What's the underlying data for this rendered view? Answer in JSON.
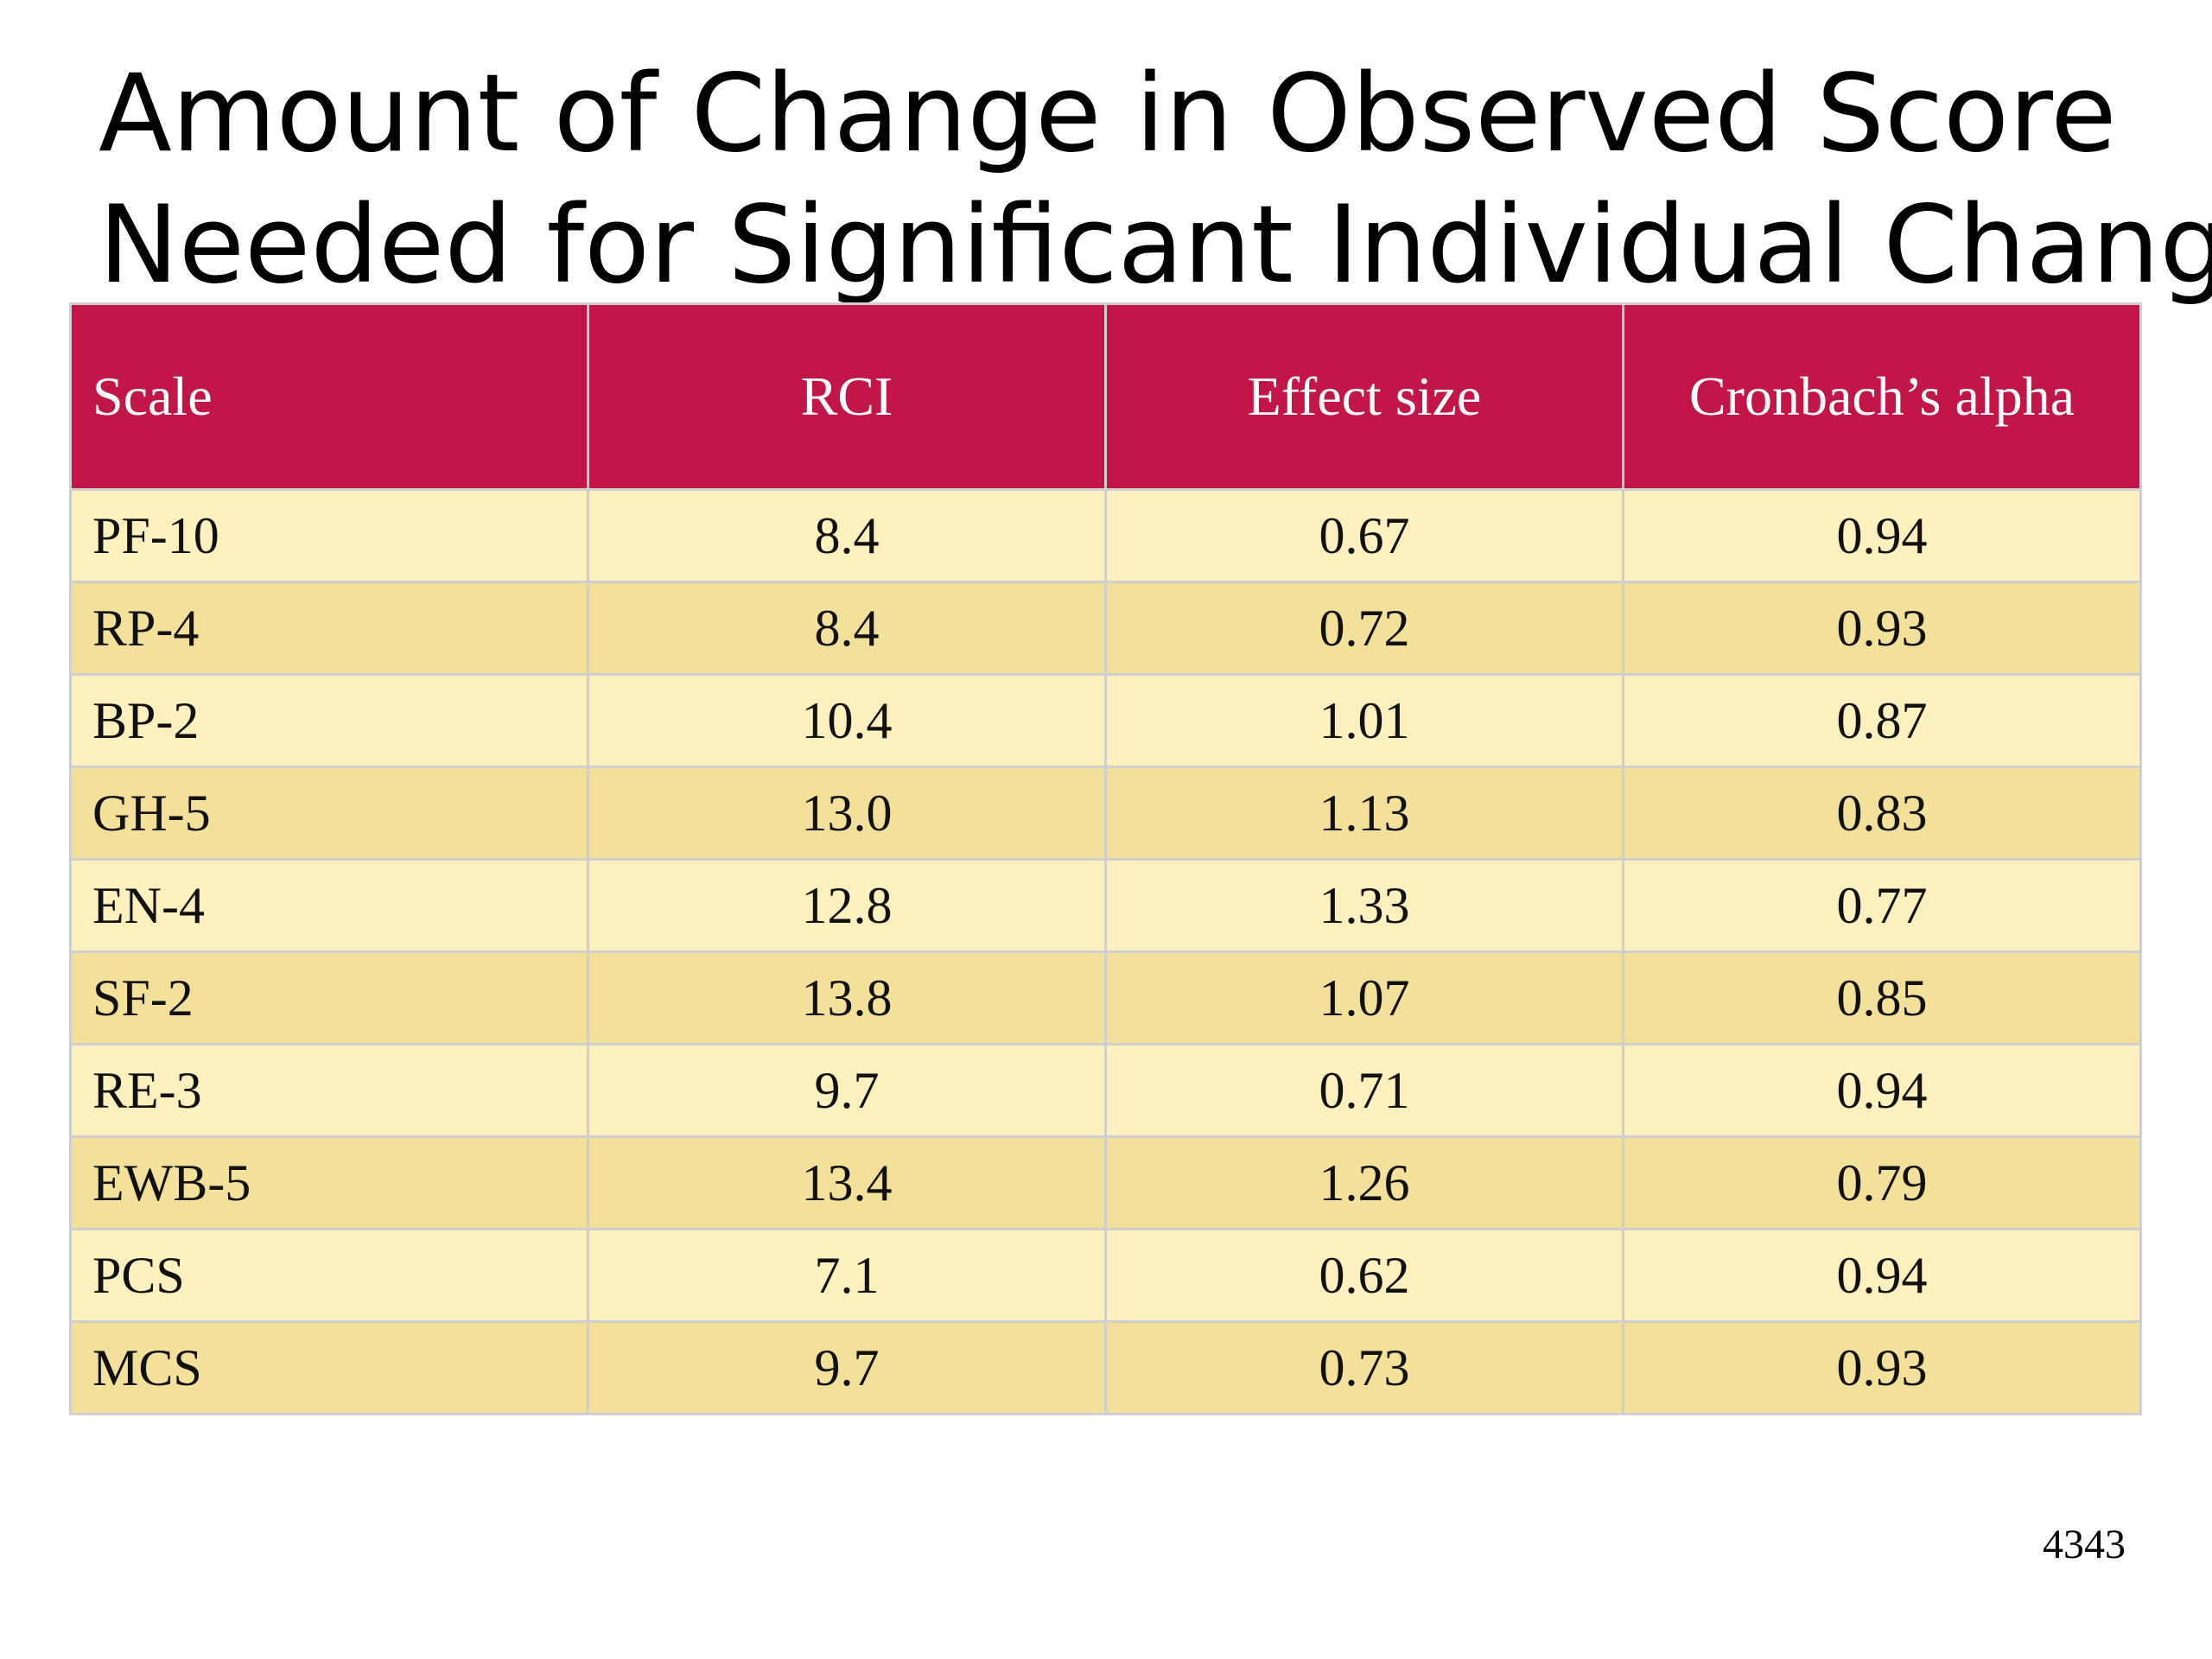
{
  "slide": {
    "title_line1": "Amount of Change in Observed Score",
    "title_line2": "Needed for Significant Individual Change",
    "page_number": "4343"
  },
  "table": {
    "headers": [
      "Scale",
      "RCI",
      "Effect size",
      "Cronbach’s alpha"
    ],
    "rows": [
      {
        "scale": "PF-10",
        "rci": "8.4",
        "effect": "0.67",
        "alpha": "0.94"
      },
      {
        "scale": "RP-4",
        "rci": "8.4",
        "effect": "0.72",
        "alpha": "0.93"
      },
      {
        "scale": "BP-2",
        "rci": "10.4",
        "effect": "1.01",
        "alpha": "0.87"
      },
      {
        "scale": "GH-5",
        "rci": "13.0",
        "effect": "1.13",
        "alpha": "0.83"
      },
      {
        "scale": "EN-4",
        "rci": "12.8",
        "effect": "1.33",
        "alpha": "0.77"
      },
      {
        "scale": "SF-2",
        "rci": "13.8",
        "effect": "1.07",
        "alpha": "0.85"
      },
      {
        "scale": "RE-3",
        "rci": "9.7",
        "effect": "0.71",
        "alpha": "0.94"
      },
      {
        "scale": "EWB-5",
        "rci": "13.4",
        "effect": "1.26",
        "alpha": "0.79"
      },
      {
        "scale": "PCS",
        "rci": "7.1",
        "effect": "0.62",
        "alpha": "0.94"
      },
      {
        "scale": "MCS",
        "rci": "9.7",
        "effect": "0.73",
        "alpha": "0.93"
      }
    ]
  },
  "colors": {
    "header_bg": "#c2164a",
    "header_text": "#ffffff",
    "row_light": "#fdf0bf",
    "row_dark": "#f2e09b",
    "border": "#cfcfcf"
  }
}
